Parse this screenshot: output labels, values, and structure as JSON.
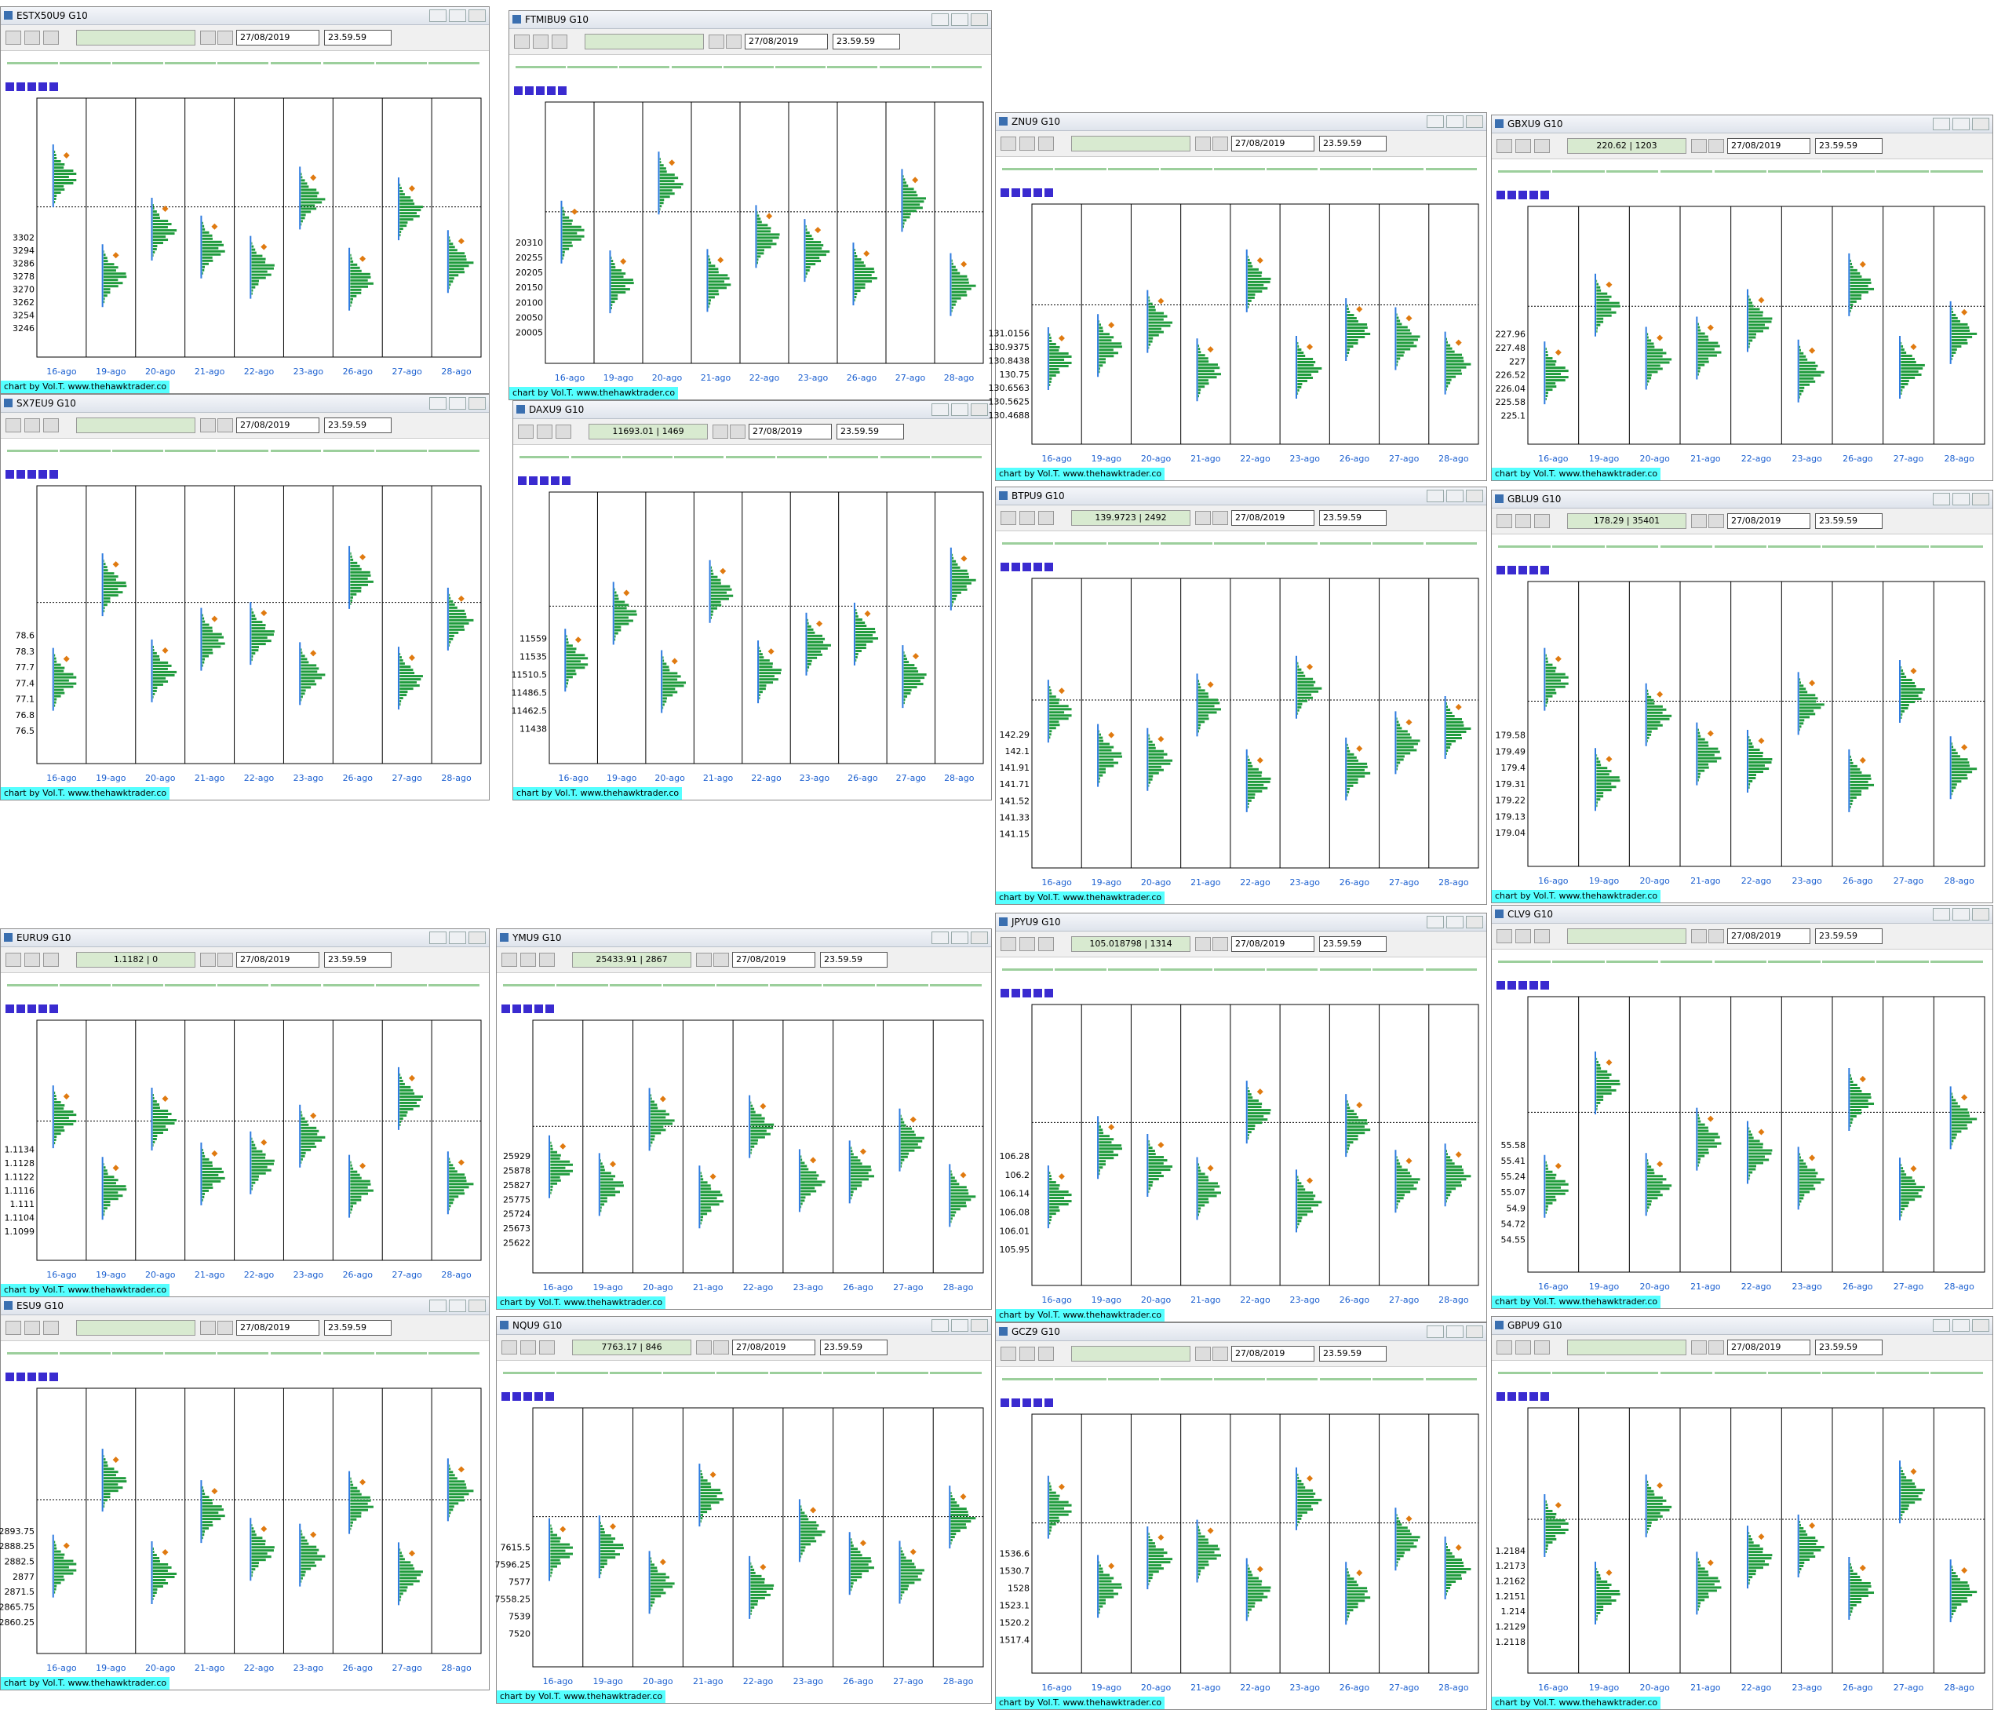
{
  "date": "27/08/2019",
  "time": "23.59.59",
  "footer": "chart by Vol.T. www.thehawktrader.co",
  "days": [
    "16-ago",
    "19-ago",
    "20-ago",
    "21-ago",
    "22-ago",
    "23-ago",
    "26-ago",
    "27-ago",
    "28-ago"
  ],
  "windows": [
    {
      "title": "ESTX50U9 G10",
      "info": "",
      "prices": [
        "3302",
        "3294",
        "3286",
        "3278",
        "3270",
        "3262",
        "3254",
        "3246"
      ]
    },
    {
      "title": "SX7EU9 G10",
      "info": "",
      "prices": [
        "78.6",
        "78.3",
        "77.7",
        "77.4",
        "77.1",
        "76.8",
        "76.5"
      ]
    },
    {
      "title": "EURU9 G10",
      "info": "1.1182 | 0",
      "prices": [
        "1.1134",
        "1.1128",
        "1.1122",
        "1.1116",
        "1.111",
        "1.1104",
        "1.1099"
      ]
    },
    {
      "title": "ESU9 G10",
      "info": "",
      "prices": [
        "2893.75",
        "2888.25",
        "2882.5",
        "2877",
        "2871.5",
        "2865.75",
        "2860.25"
      ]
    },
    {
      "title": "FTMIBU9 G10",
      "info": "",
      "prices": [
        "20310",
        "20255",
        "20205",
        "20150",
        "20100",
        "20050",
        "20005"
      ]
    },
    {
      "title": "DAXU9 G10",
      "info": "11693.01 | 1469",
      "prices": [
        "11559",
        "11535",
        "11510.5",
        "11486.5",
        "11462.5",
        "11438"
      ]
    },
    {
      "title": "YMU9 G10",
      "info": "25433.91 | 2867",
      "prices": [
        "25929",
        "25878",
        "25827",
        "25775",
        "25724",
        "25673",
        "25622"
      ]
    },
    {
      "title": "NQU9 G10",
      "info": "7763.17 | 846",
      "prices": [
        "7615.5",
        "7596.25",
        "7577",
        "7558.25",
        "7539",
        "7520"
      ]
    },
    {
      "title": "ZNU9 G10",
      "info": "",
      "prices": [
        "131.0156",
        "130.9375",
        "130.8438",
        "130.75",
        "130.6563",
        "130.5625",
        "130.4688"
      ]
    },
    {
      "title": "BTPU9 G10",
      "info": "139.9723 | 2492",
      "prices": [
        "142.29",
        "142.1",
        "141.91",
        "141.71",
        "141.52",
        "141.33",
        "141.15"
      ]
    },
    {
      "title": "JPYU9 G10",
      "info": "105.018798 | 1314",
      "prices": [
        "106.28",
        "106.2",
        "106.14",
        "106.08",
        "106.01",
        "105.95"
      ]
    },
    {
      "title": "GCZ9 G10",
      "info": "",
      "prices": [
        "1536.6",
        "1530.7",
        "1528",
        "1523.1",
        "1520.2",
        "1517.4"
      ]
    },
    {
      "title": "GBXU9 G10",
      "info": "220.62 | 1203",
      "prices": [
        "227.96",
        "227.48",
        "227",
        "226.52",
        "226.04",
        "225.58",
        "225.1"
      ]
    },
    {
      "title": "GBLU9 G10",
      "info": "178.29 | 35401",
      "prices": [
        "179.58",
        "179.49",
        "179.4",
        "179.31",
        "179.22",
        "179.13",
        "179.04"
      ]
    },
    {
      "title": "CLV9 G10",
      "info": "",
      "prices": [
        "55.58",
        "55.41",
        "55.24",
        "55.07",
        "54.9",
        "54.72",
        "54.55"
      ]
    },
    {
      "title": "GBPU9 G10",
      "info": "",
      "prices": [
        "1.2184",
        "1.2173",
        "1.2162",
        "1.2151",
        "1.214",
        "1.2129",
        "1.2118"
      ]
    }
  ]
}
